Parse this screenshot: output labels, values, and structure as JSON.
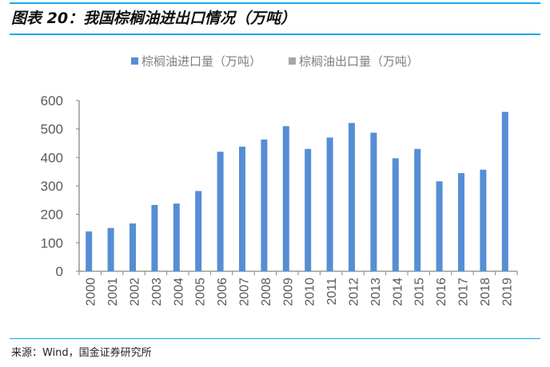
{
  "title": "图表 20：我国棕榈油进出口情况（万吨）",
  "source": "来源：Wind，国金证券研究所",
  "colors": {
    "import": "#558ed5",
    "export": "#a6a6a6",
    "rule": "#12a9e8"
  },
  "chart_data": {
    "type": "bar",
    "title": "",
    "xlabel": "",
    "ylabel": "",
    "ylim": [
      0,
      600
    ],
    "yticks": [
      0,
      100,
      200,
      300,
      400,
      500,
      600
    ],
    "grid": false,
    "legend_position": "top-center",
    "categories": [
      "2000",
      "2001",
      "2002",
      "2003",
      "2004",
      "2005",
      "2006",
      "2007",
      "2008",
      "2009",
      "2010",
      "2011",
      "2012",
      "2013",
      "2014",
      "2015",
      "2016",
      "2017",
      "2018",
      "2019"
    ],
    "series": [
      {
        "name": "棕榈油进口量（万吨）",
        "values": [
          140,
          152,
          168,
          233,
          238,
          282,
          420,
          438,
          463,
          510,
          430,
          470,
          521,
          487,
          397,
          430,
          316,
          345,
          357,
          560
        ]
      },
      {
        "name": "棕榈油出口量（万吨）",
        "values": [
          0,
          0,
          0,
          0,
          0,
          0,
          0,
          0,
          0,
          0,
          0,
          0,
          0,
          0,
          0,
          0,
          0,
          0,
          0,
          0
        ]
      }
    ]
  }
}
